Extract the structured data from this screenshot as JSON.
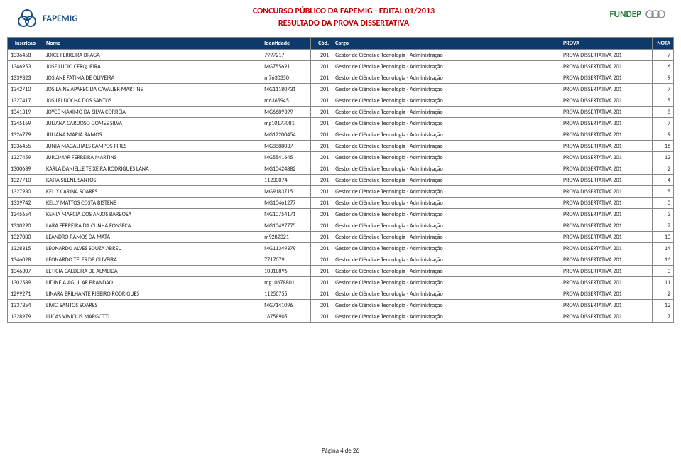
{
  "header": {
    "title_line1": "CONCURSO PÚBLICO DA FAPEMIG - EDITAL 01/2013",
    "title_line2": "RESULTADO DA PROVA DISSERTATIVA",
    "logo_left_text": "FAPEMIG",
    "logo_right_text": "FUNDEP"
  },
  "colors": {
    "header_bg": "#0d3a6b",
    "header_text": "#ffffff",
    "title_color": "#c00000",
    "border": "#888888",
    "logo_left_color": "#1a4f8a",
    "logo_right_color": "#2a7a3a"
  },
  "table": {
    "columns": [
      "Inscricao",
      "Nome",
      "Identidade",
      "Cód.",
      "Cargo",
      "PROVA",
      "NOTA"
    ],
    "rows": [
      [
        "1336458",
        "JOICE FERREIRA BRAGA",
        "7997217",
        "201",
        "Gestor de Ciência e Tecnologia - Administração",
        "PROVA DISSERTATIVA 201",
        "7"
      ],
      [
        "1346953",
        "JOSE LUCIO CERQUEIRA",
        "MG755691",
        "201",
        "Gestor de Ciência e Tecnologia - Administração",
        "PROVA DISSERTATIVA 201",
        "6"
      ],
      [
        "1339323",
        "JOSIANE FATIMA DE OLIVEIRA",
        "m7630350",
        "201",
        "Gestor de Ciência e Tecnologia - Administração",
        "PROVA DISSERTATIVA 201",
        "9"
      ],
      [
        "1342710",
        "JOSILAINE APARECIDA CAVALIER MARTINS",
        "MG11180731",
        "201",
        "Gestor de Ciência e Tecnologia - Administração",
        "PROVA DISSERTATIVA 201",
        "7"
      ],
      [
        "1327417",
        "JOSILEI DOCHA DOS SANTOS",
        "m6365945",
        "201",
        "Gestor de Ciência e Tecnologia - Administração",
        "PROVA DISSERTATIVA 201",
        "5"
      ],
      [
        "1341319",
        "JOYCE MAXIMO DA SILVA CORREIA",
        "MG6689399",
        "201",
        "Gestor de Ciência e Tecnologia - Administração",
        "PROVA DISSERTATIVA 201",
        "8"
      ],
      [
        "1345159",
        "JULIANA CARDOSO GOMES SILVA",
        "mg10177081",
        "201",
        "Gestor de Ciência e Tecnologia - Administração",
        "PROVA DISSERTATIVA 201",
        "7"
      ],
      [
        "1326779",
        "JULIANA MARIA RAMOS",
        "MG12200454",
        "201",
        "Gestor de Ciência e Tecnologia - Administração",
        "PROVA DISSERTATIVA 201",
        "9"
      ],
      [
        "1336455",
        "JUNIA MAGALHAES CAMPOS PIRES",
        "MG8888037",
        "201",
        "Gestor de Ciência e Tecnologia - Administração",
        "PROVA DISSERTATIVA 201",
        "16"
      ],
      [
        "1327459",
        "JURCIMAR FERREIRA MARTINS",
        "MG5541645",
        "201",
        "Gestor de Ciência e Tecnologia - Administração",
        "PROVA DISSERTATIVA 201",
        "12"
      ],
      [
        "1300639",
        "KARLA DANIELLE TEIXEIRA RODRIGUES LANA",
        "MG10424882",
        "201",
        "Gestor de Ciência e Tecnologia - Administração",
        "PROVA DISSERTATIVA 201",
        "2"
      ],
      [
        "1327710",
        "KATIA SILENE SANTOS",
        "11233074",
        "201",
        "Gestor de Ciência e Tecnologia - Administração",
        "PROVA DISSERTATIVA 201",
        "4"
      ],
      [
        "1327930",
        "KELLY CARINA SOARES",
        "MG9183715",
        "201",
        "Gestor de Ciência e Tecnologia - Administração",
        "PROVA DISSERTATIVA 201",
        "5"
      ],
      [
        "1339742",
        "KELLY MATTOS COSTA BISTENE",
        "MG10461277",
        "201",
        "Gestor de Ciência e Tecnologia - Administração",
        "PROVA DISSERTATIVA 201",
        "0"
      ],
      [
        "1345654",
        "KENIA MARCIA DOS ANJOS BARBOSA",
        "MG10754171",
        "201",
        "Gestor de Ciência e Tecnologia - Administração",
        "PROVA DISSERTATIVA 201",
        "3"
      ],
      [
        "1330290",
        "LARA FERREIRA DA CUNHA FONSECA",
        "MG10497775",
        "201",
        "Gestor de Ciência e Tecnologia - Administração",
        "PROVA DISSERTATIVA 201",
        "7"
      ],
      [
        "1327080",
        "LEANDRO RAMOS DA MATA",
        "m9282321",
        "201",
        "Gestor de Ciência e Tecnologia - Administração",
        "PROVA DISSERTATIVA 201",
        "10"
      ],
      [
        "1328315",
        "LEONARDO ALVES SOUZA ABREU",
        "MG11349379",
        "201",
        "Gestor de Ciência e Tecnologia - Administração",
        "PROVA DISSERTATIVA 201",
        "14"
      ],
      [
        "1346028",
        "LEONARDO TELES DE OLIVEIRA",
        "7717079",
        "201",
        "Gestor de Ciência e Tecnologia - Administração",
        "PROVA DISSERTATIVA 201",
        "16"
      ],
      [
        "1346307",
        "LETICIA CALDEIRA DE ALMEIDA",
        "10318896",
        "201",
        "Gestor de Ciência e Tecnologia - Administração",
        "PROVA DISSERTATIVA 201",
        "0"
      ],
      [
        "1302589",
        "LIDINEIA AGUILAR BRANDAO",
        "mg10678801",
        "201",
        "Gestor de Ciência e Tecnologia - Administração",
        "PROVA DISSERTATIVA 201",
        "11"
      ],
      [
        "1299271",
        "LINARA BRILHANTE RIBEIRO RODRIGUES",
        "11250755",
        "201",
        "Gestor de Ciência e Tecnologia - Administração",
        "PROVA DISSERTATIVA 201",
        "2"
      ],
      [
        "1337354",
        "LIVIO SANTOS SOARES",
        "MG7141096",
        "201",
        "Gestor de Ciência e Tecnologia - Administração",
        "PROVA DISSERTATIVA 201",
        "12"
      ],
      [
        "1328979",
        "LUCAS VINICIUS MARGOTTI",
        "16758905",
        "201",
        "Gestor de Ciência e Tecnologia - Administração",
        "PROVA DISSERTATIVA 201",
        "7"
      ]
    ]
  },
  "footer": {
    "page_text": "Página 4 de 26"
  }
}
